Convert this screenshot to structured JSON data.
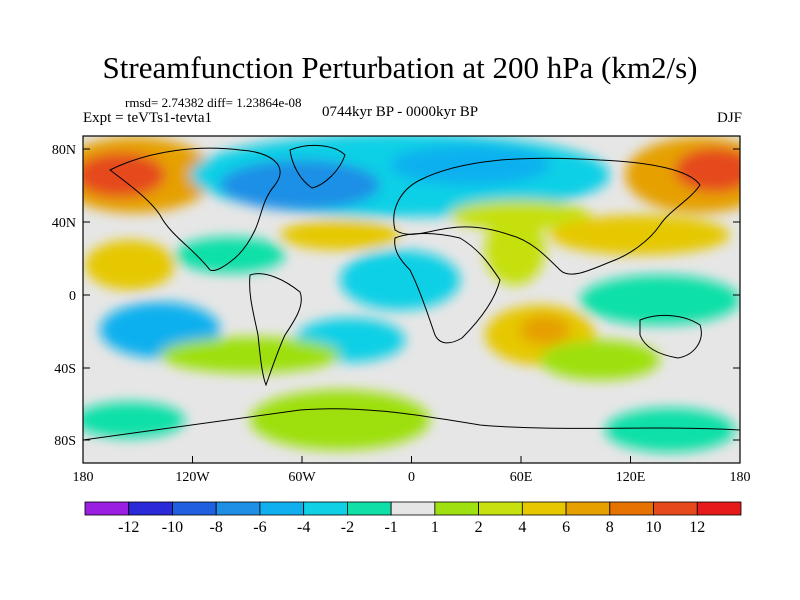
{
  "title": "Streamfunction Perturbation at 200 hPa (km2/s)",
  "stats": "rmsd= 2.74382 diff= 1.23864e-08",
  "experiment": "Expt = teVTs1-tevta1",
  "period": "0744kyr BP - 0000kyr BP",
  "season": "DJF",
  "map": {
    "projection": "cylindrical equidistant",
    "lon_range": [
      -180,
      180
    ],
    "lat_range": [
      -90,
      90
    ],
    "y_ticks": [
      "80N",
      "40N",
      "0",
      "40S",
      "80S"
    ],
    "x_ticks": [
      "180",
      "120W",
      "60W",
      "0",
      "60E",
      "120E",
      "180"
    ],
    "coastlines": true,
    "neutral_color": "#e6e6e6"
  },
  "colorbar": {
    "labels": [
      "-12",
      "-10",
      "-8",
      "-6",
      "-4",
      "-2",
      "-1",
      "1",
      "2",
      "4",
      "6",
      "8",
      "10",
      "12"
    ],
    "colors": [
      "#9a1fe0",
      "#2a2ad8",
      "#1f5fe0",
      "#1f8fe6",
      "#10b0ee",
      "#10d0e6",
      "#10e0a8",
      "#e6e6e6",
      "#9ee010",
      "#c6e010",
      "#e6c800",
      "#e6a000",
      "#e67300",
      "#e64a1a",
      "#e61a1a"
    ]
  }
}
